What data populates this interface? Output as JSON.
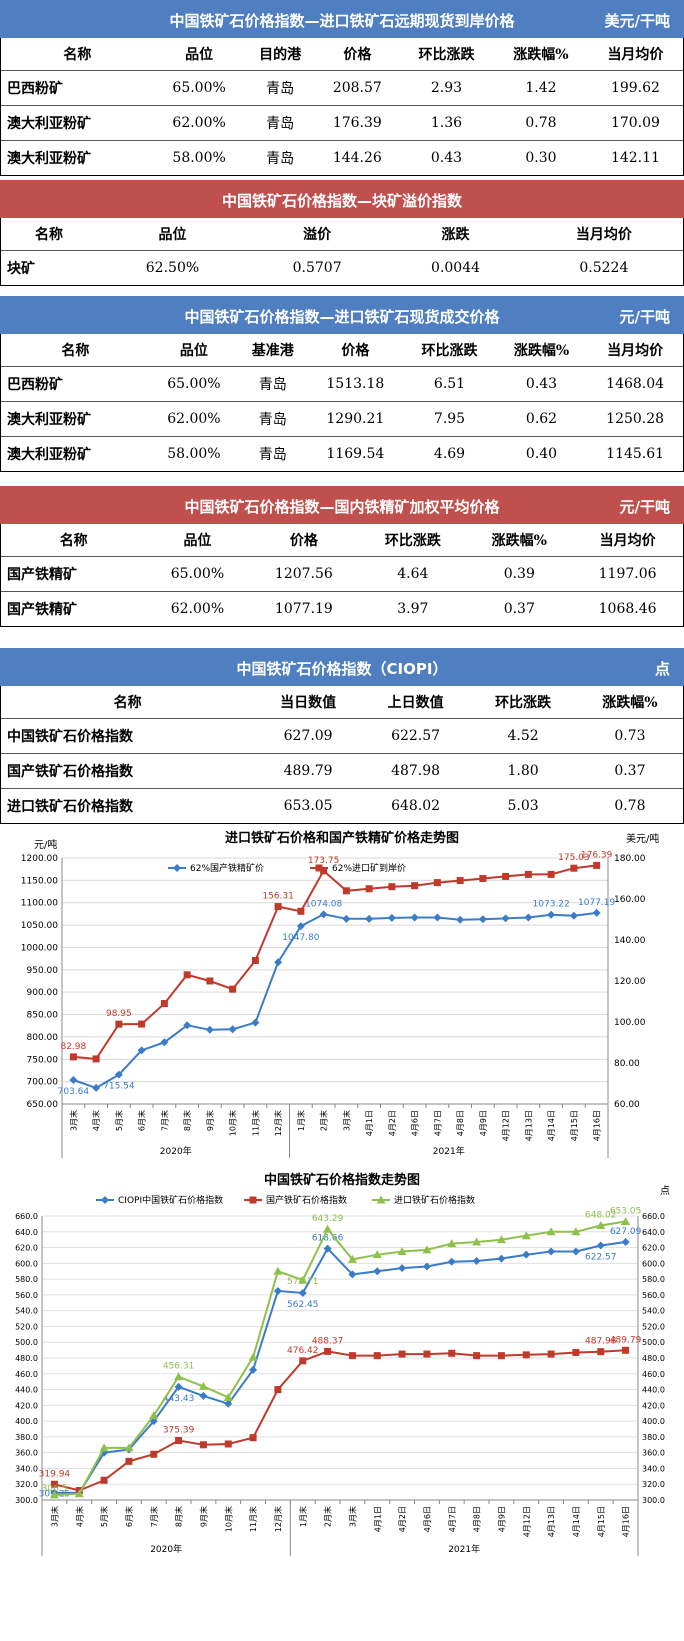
{
  "tables": [
    {
      "color": "blue",
      "title": "中国铁矿石价格指数—进口铁矿石远期现货到岸价格",
      "unit": "美元/干吨",
      "headers": [
        "名称",
        "品位",
        "目的港",
        "价格",
        "环比涨跌",
        "涨跌幅%",
        "当月均价"
      ],
      "rows": [
        [
          "巴西粉矿",
          "65.00%",
          "青岛",
          "208.57",
          "2.93",
          "1.42",
          "199.62"
        ],
        [
          "澳大利亚粉矿",
          "62.00%",
          "青岛",
          "176.39",
          "1.36",
          "0.78",
          "170.09"
        ],
        [
          "澳大利亚粉矿",
          "58.00%",
          "青岛",
          "144.26",
          "0.43",
          "0.30",
          "142.11"
        ]
      ]
    },
    {
      "color": "red",
      "title": "中国铁矿石价格指数—块矿溢价指数",
      "unit": "",
      "headers": [
        "名称",
        "品位",
        "溢价",
        "涨跌",
        "当月均价"
      ],
      "rows": [
        [
          "块矿",
          "62.50%",
          "0.5707",
          "0.0044",
          "0.5224"
        ]
      ]
    },
    {
      "color": "blue",
      "title": "中国铁矿石价格指数—进口铁矿石现货成交价格",
      "unit": "元/干吨",
      "headers": [
        "名称",
        "品位",
        "基准港",
        "价格",
        "环比涨跌",
        "涨跌幅%",
        "当月均价"
      ],
      "rows": [
        [
          "巴西粉矿",
          "65.00%",
          "青岛",
          "1513.18",
          "6.51",
          "0.43",
          "1468.04"
        ],
        [
          "澳大利亚粉矿",
          "62.00%",
          "青岛",
          "1290.21",
          "7.95",
          "0.62",
          "1250.28"
        ],
        [
          "澳大利亚粉矿",
          "58.00%",
          "青岛",
          "1169.54",
          "4.69",
          "0.40",
          "1145.61"
        ]
      ]
    },
    {
      "color": "red",
      "title": "中国铁矿石价格指数—国内铁精矿加权平均价格",
      "unit": "元/干吨",
      "headers": [
        "名称",
        "品位",
        "价格",
        "环比涨跌",
        "涨跌幅%",
        "当月均价"
      ],
      "rows": [
        [
          "国产铁精矿",
          "65.00%",
          "1207.56",
          "4.64",
          "0.39",
          "1197.06"
        ],
        [
          "国产铁精矿",
          "62.00%",
          "1077.19",
          "3.97",
          "0.37",
          "1068.46"
        ]
      ]
    },
    {
      "color": "blue",
      "title": "中国铁矿石价格指数（CIOPI）",
      "unit": "点",
      "headers": [
        "名称",
        "当日数值",
        "上日数值",
        "环比涨跌",
        "涨跌幅%"
      ],
      "rows": [
        [
          "中国铁矿石价格指数",
          "627.09",
          "622.57",
          "4.52",
          "0.73"
        ],
        [
          "国产铁矿石价格指数",
          "489.79",
          "487.98",
          "1.80",
          "0.37"
        ],
        [
          "进口铁矿石价格指数",
          "653.05",
          "648.02",
          "5.03",
          "0.78"
        ]
      ]
    }
  ],
  "chart_data": [
    {
      "type": "line",
      "title": "进口铁矿石价格和国产铁精矿价格走势图",
      "ylabel_left": "元/吨",
      "ylabel_right": "美元/吨",
      "x": [
        "3月末",
        "4月末",
        "5月末",
        "6月末",
        "7月末",
        "8月末",
        "9月末",
        "10月末",
        "11月末",
        "12月末",
        "1月末",
        "2月末",
        "3月末",
        "4月1日",
        "4月2日",
        "4月6日",
        "4月7日",
        "4月8日",
        "4月9日",
        "4月12日",
        "4月13日",
        "4月14日",
        "4月15日",
        "4月16日"
      ],
      "year_groups": [
        {
          "label": "2020年",
          "from": 0,
          "to": 9
        },
        {
          "label": "2021年",
          "from": 10,
          "to": 23
        }
      ],
      "ylim_left": [
        650,
        1200
      ],
      "ylim_right": [
        60,
        180
      ],
      "yticks_left": [
        "650.00",
        "700.00",
        "750.00",
        "800.00",
        "850.00",
        "900.00",
        "950.00",
        "1000.00",
        "1050.00",
        "1100.00",
        "1150.00",
        "1200.00"
      ],
      "yticks_right": [
        "60.00",
        "80.00",
        "100.00",
        "120.00",
        "140.00",
        "160.00",
        "180.00"
      ],
      "series": [
        {
          "name": "62%国产铁精矿价",
          "axis": "left",
          "color": "#3a7cc9",
          "marker": "diamond",
          "values": [
            703.64,
            686,
            715.54,
            770,
            788,
            826,
            816,
            817,
            832,
            967,
            1047.8,
            1074.08,
            1064,
            1064,
            1066,
            1067,
            1067,
            1062,
            1063,
            1065,
            1067,
            1073.22,
            1071,
            1077.19
          ],
          "labels": {
            "0": "703.64",
            "2": "715.54",
            "10": "1047.80",
            "11": "1074.08",
            "21": "1073.22",
            "23": "1077.19"
          }
        },
        {
          "name": "62%进口矿到岸价",
          "axis": "right",
          "color": "#c0392b",
          "marker": "square",
          "values": [
            82.98,
            82,
            98.95,
            99,
            109,
            123,
            120,
            116,
            130,
            156.31,
            154,
            173.75,
            164,
            165,
            166,
            166.5,
            168,
            169,
            170,
            171,
            172,
            172,
            175.03,
            176.39
          ],
          "labels": {
            "0": "82.98",
            "2": "98.95",
            "9": "156.31",
            "11": "173.75",
            "22": "175.03",
            "23": "176.39"
          }
        }
      ]
    },
    {
      "type": "line",
      "title": "中国铁矿石价格指数走势图",
      "ylabel_right": "点",
      "x": [
        "3月末",
        "4月末",
        "5月末",
        "6月末",
        "7月末",
        "8月末",
        "9月末",
        "10月末",
        "11月末",
        "12月末",
        "1月末",
        "2月末",
        "3月末",
        "4月1日",
        "4月2日",
        "4月6日",
        "4月7日",
        "4月8日",
        "4月9日",
        "4月12日",
        "4月13日",
        "4月14日",
        "4月15日",
        "4月16日"
      ],
      "year_groups": [
        {
          "label": "2020年",
          "from": 0,
          "to": 9
        },
        {
          "label": "2021年",
          "from": 10,
          "to": 23
        }
      ],
      "ylim": [
        300,
        660
      ],
      "yticks": [
        "300.0",
        "320.0",
        "340.0",
        "360.0",
        "380.0",
        "400.0",
        "420.0",
        "440.0",
        "460.0",
        "480.0",
        "500.0",
        "520.0",
        "540.0",
        "560.0",
        "580.0",
        "600.0",
        "620.0",
        "640.0",
        "660.0"
      ],
      "series": [
        {
          "name": "CIOPI中国铁矿石价格指数",
          "color": "#3a7cc9",
          "marker": "diamond",
          "values": [
            309.25,
            309,
            360,
            364,
            400,
            443.43,
            432,
            422,
            465,
            565,
            562.45,
            618.66,
            586,
            590,
            594,
            596,
            602,
            603,
            606,
            611,
            615,
            615,
            622.57,
            627.09
          ],
          "labels": {
            "0": "309.25",
            "5": "443.43",
            "10": "562.45",
            "11": "618.66",
            "22": "622.57",
            "23": "627.09"
          }
        },
        {
          "name": "国产铁矿石价格指数",
          "color": "#c0392b",
          "marker": "square",
          "values": [
            319.94,
            312,
            325,
            349,
            358,
            375.39,
            370,
            371,
            379,
            440,
            476.42,
            488.37,
            483,
            483,
            485,
            485,
            486,
            483,
            483,
            484,
            485,
            487,
            487.98,
            489.79
          ],
          "labels": {
            "0": "319.94",
            "5": "375.39",
            "10": "476.42",
            "11": "488.37",
            "22": "487.98",
            "23": "489.79"
          }
        },
        {
          "name": "进口铁矿石价格指数",
          "color": "#8fc04c",
          "marker": "triangle",
          "values": [
            306.5,
            308,
            366,
            366,
            407,
            456.31,
            444,
            430,
            481,
            590,
            578.71,
            643.29,
            605,
            611,
            615,
            617,
            625,
            627,
            630,
            635,
            640,
            640,
            648.02,
            653.05
          ],
          "labels": {
            "0": "306.5",
            "5": "456.31",
            "10": "578.71",
            "11": "643.29",
            "22": "648.02",
            "23": "653.05"
          }
        }
      ]
    }
  ]
}
